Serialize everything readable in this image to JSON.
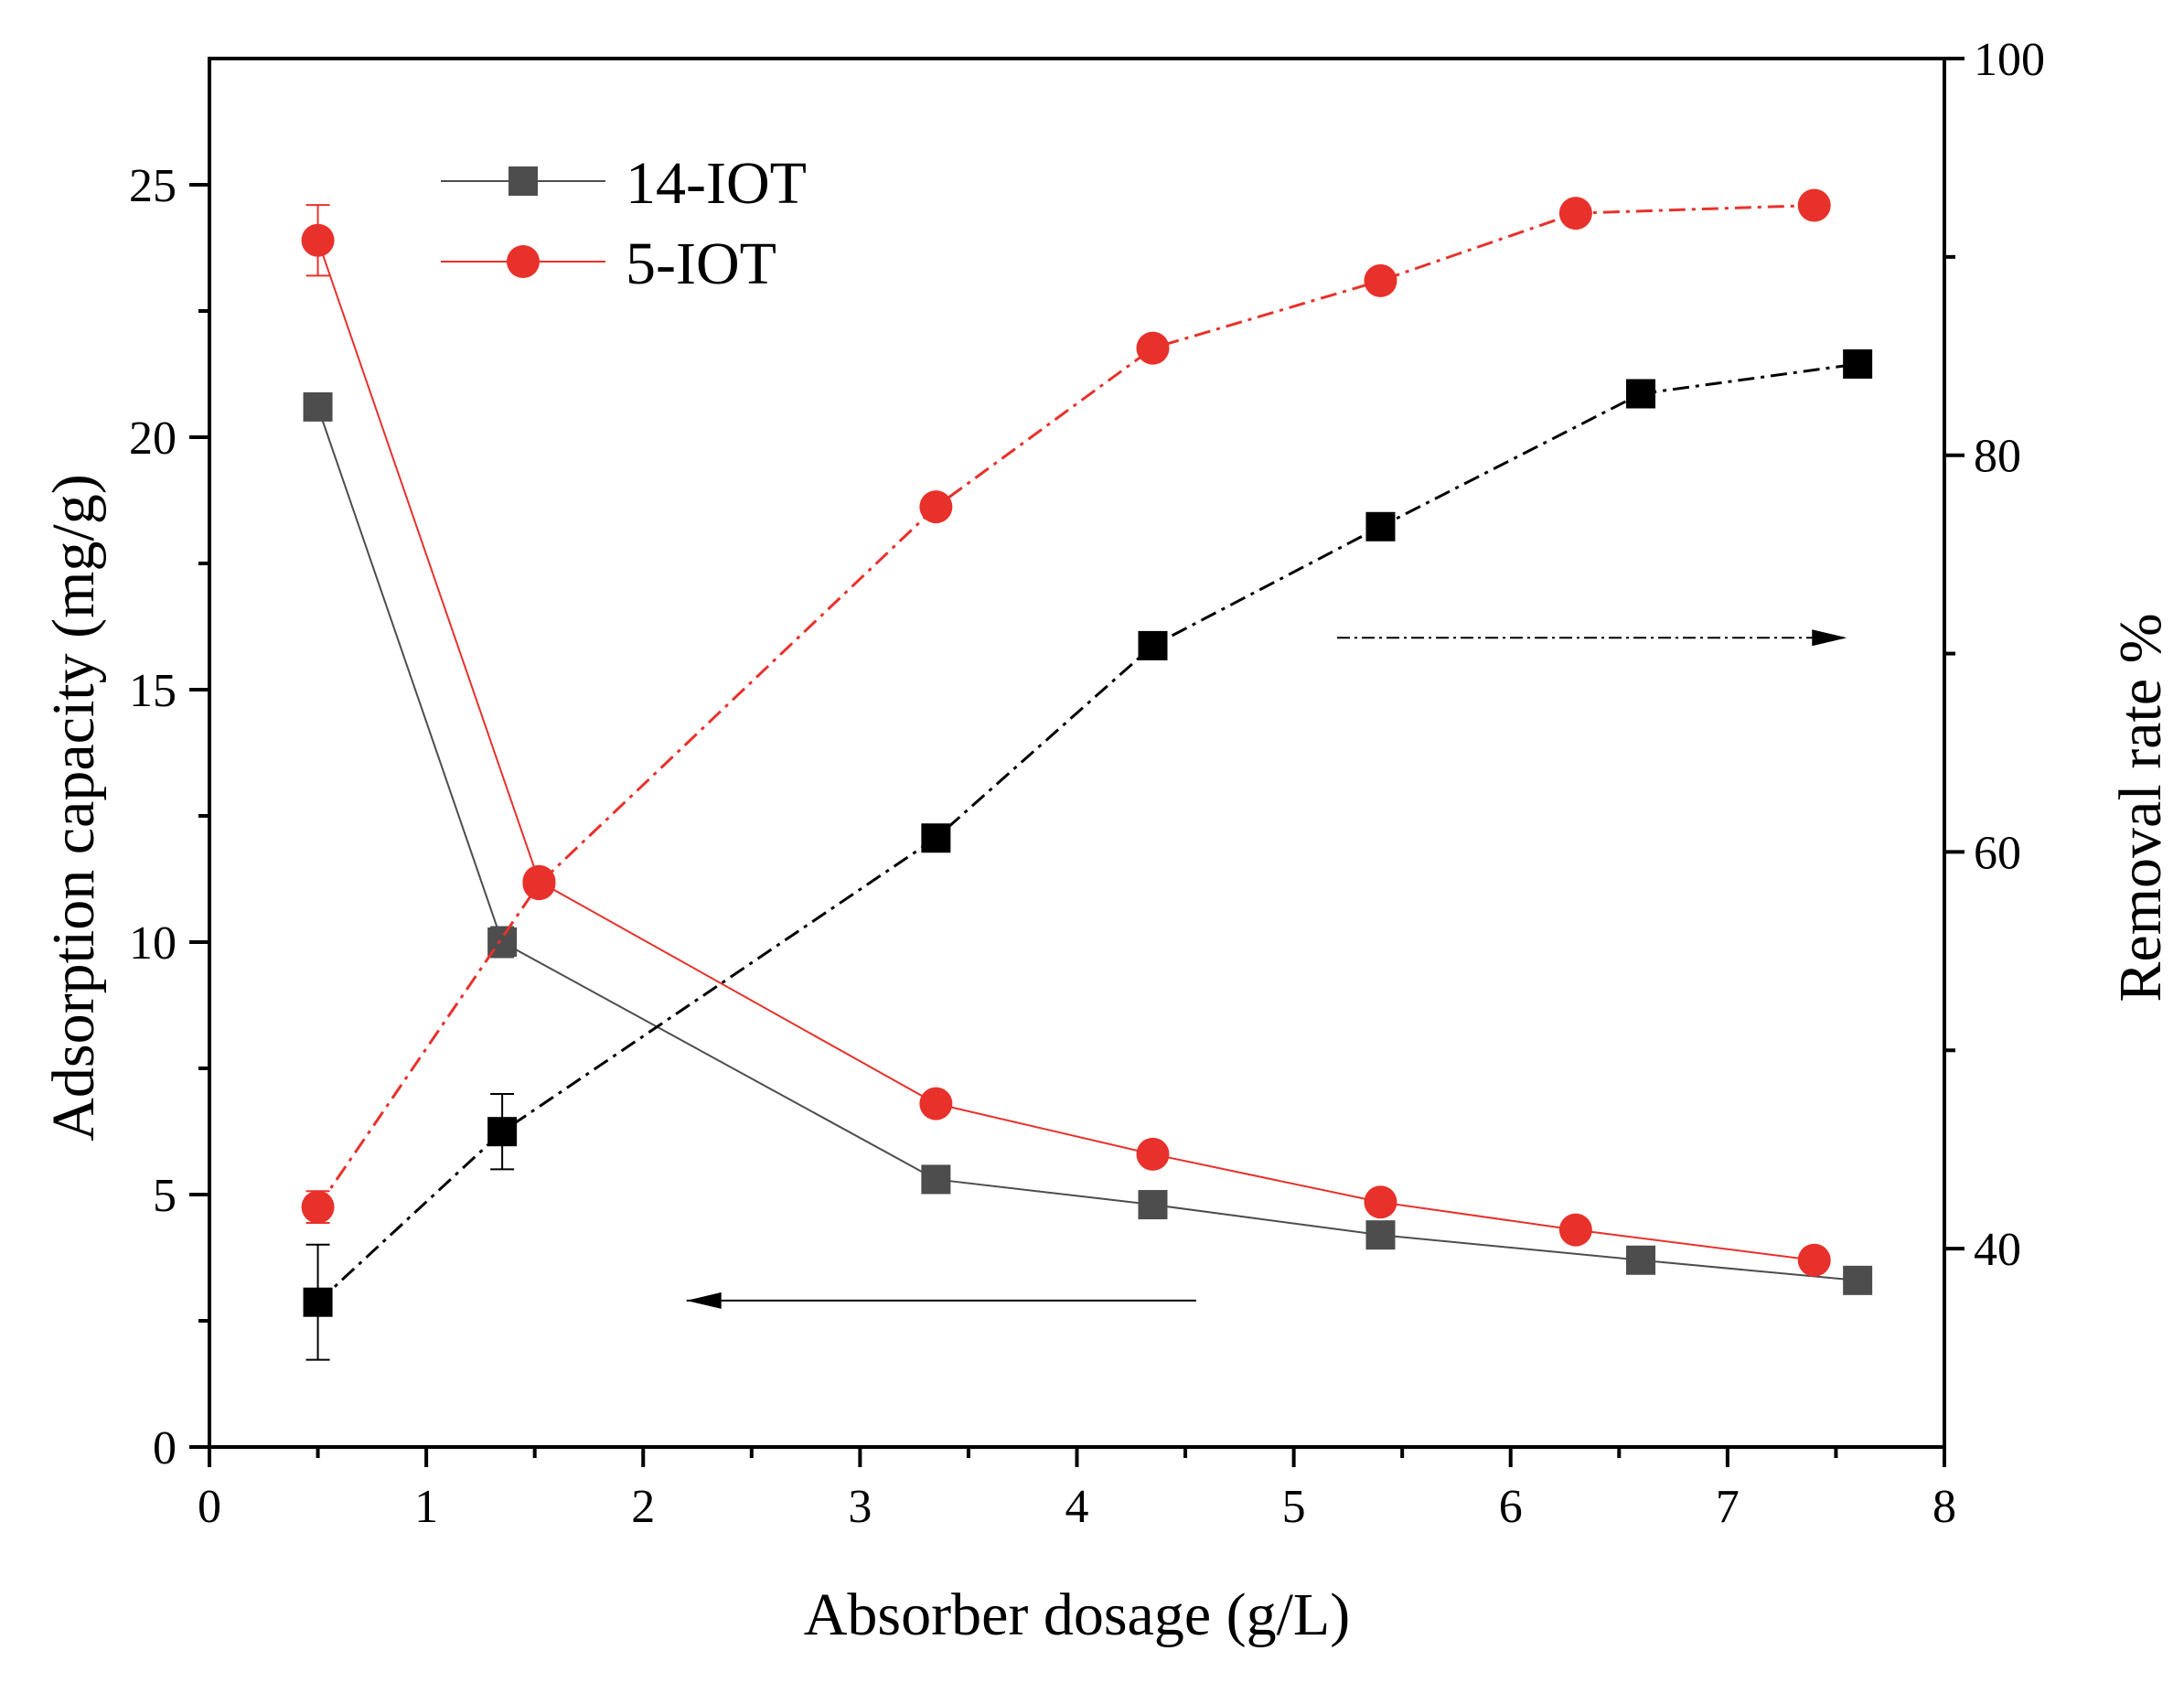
{
  "chart_data": {
    "type": "line",
    "title": "",
    "xlabel": "Absorber dosage (g/L)",
    "ylabel_left": "Adsorption capacity (mg/g)",
    "ylabel_right": "Removal rate %",
    "xlim": [
      0,
      8
    ],
    "ylim_left": [
      0,
      27.5
    ],
    "ylim_right": [
      30,
      100
    ],
    "x_ticks": [
      "0",
      "1",
      "2",
      "3",
      "4",
      "5",
      "6",
      "7",
      "8"
    ],
    "y_left_ticks": [
      "0",
      "5",
      "10",
      "15",
      "20",
      "25"
    ],
    "y_right_ticks": [
      "40",
      "60",
      "80",
      "100"
    ],
    "legend": [
      "14-IOT",
      "5-IOT"
    ],
    "legend_position": "top-left",
    "colors": {
      "14-IOT_capacity": "#4d4d4d",
      "14-IOT_removal": "#000000",
      "5-IOT": "#e8312b"
    },
    "series": [
      {
        "name": "14-IOT",
        "metric": "adsorption capacity",
        "axis": "left",
        "line_style": "solid",
        "marker": "square",
        "x": [
          0.5,
          1.35,
          3.35,
          4.35,
          5.4,
          6.6,
          7.6
        ],
        "values": [
          20.6,
          10.0,
          5.3,
          4.8,
          4.2,
          3.7,
          3.3
        ],
        "errors": [
          0,
          0.3,
          0,
          0,
          0,
          0,
          0
        ]
      },
      {
        "name": "5-IOT",
        "metric": "adsorption capacity",
        "axis": "left",
        "line_style": "solid",
        "marker": "circle",
        "x": [
          0.5,
          1.52,
          3.35,
          4.35,
          5.4,
          6.3,
          7.4
        ],
        "values": [
          23.9,
          11.2,
          6.8,
          5.8,
          4.85,
          4.3,
          3.7
        ],
        "errors": [
          0.7,
          0,
          0,
          0,
          0,
          0,
          0
        ]
      },
      {
        "name": "14-IOT",
        "metric": "removal rate",
        "axis": "right",
        "line_style": "dash-dot",
        "marker": "square",
        "x": [
          0.5,
          1.35,
          3.35,
          4.35,
          5.4,
          6.6,
          7.6
        ],
        "values": [
          37.3,
          45.9,
          60.7,
          70.4,
          76.4,
          83.1,
          84.6
        ],
        "errors": [
          2.9,
          1.9,
          0,
          0.6,
          0,
          0,
          0
        ]
      },
      {
        "name": "5-IOT",
        "metric": "removal rate",
        "axis": "right",
        "line_style": "dash-dot",
        "marker": "circle",
        "x": [
          0.5,
          1.52,
          3.35,
          4.35,
          5.4,
          6.3,
          7.4
        ],
        "values": [
          42.1,
          58.4,
          77.4,
          85.4,
          88.8,
          92.2,
          92.6
        ],
        "errors": [
          0.8,
          0,
          0,
          0,
          0,
          0,
          0
        ]
      }
    ],
    "annotations": [
      {
        "kind": "arrow",
        "direction": "left",
        "meaning": "points to left axis (adsorption capacity)",
        "x_from": 4.55,
        "x_to": 2.2,
        "y_left": 2.9
      },
      {
        "kind": "arrow",
        "direction": "right",
        "meaning": "points to right axis (removal rate)",
        "x_from": 5.2,
        "x_to": 7.55,
        "y_right": 70.8
      }
    ]
  }
}
